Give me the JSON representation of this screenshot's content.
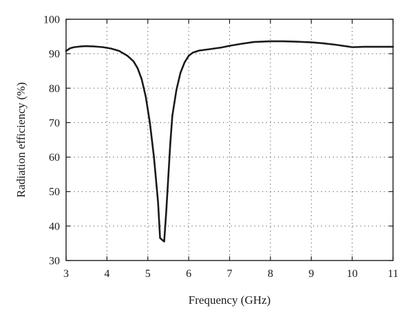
{
  "chart_data": {
    "type": "line",
    "title": "",
    "xlabel": "Frequency (GHz)",
    "ylabel": "Radiation efficiency (%)",
    "xlim": [
      3,
      11
    ],
    "ylim": [
      30,
      100
    ],
    "xticks": [
      3,
      4,
      5,
      6,
      7,
      8,
      9,
      10,
      11
    ],
    "yticks": [
      30,
      40,
      50,
      60,
      70,
      80,
      90,
      100
    ],
    "grid": true,
    "grid_style": "dotted",
    "legend": "none",
    "series": [
      {
        "color": "#1a1a1a",
        "x": [
          3.0,
          3.1,
          3.2,
          3.35,
          3.5,
          3.7,
          3.9,
          4.1,
          4.3,
          4.5,
          4.65,
          4.75,
          4.85,
          4.95,
          5.05,
          5.15,
          5.25,
          5.3,
          5.35,
          5.4,
          5.45,
          5.5,
          5.55,
          5.6,
          5.7,
          5.8,
          5.9,
          6.0,
          6.1,
          6.25,
          6.5,
          6.8,
          7.0,
          7.3,
          7.6,
          8.0,
          8.3,
          8.6,
          9.0,
          9.3,
          9.6,
          10.0,
          10.3,
          10.6,
          11.0
        ],
        "y": [
          90.8,
          91.6,
          91.9,
          92.1,
          92.2,
          92.1,
          91.9,
          91.5,
          90.8,
          89.4,
          87.8,
          85.8,
          82.6,
          77.5,
          70.0,
          60.0,
          47.0,
          36.5,
          36.0,
          35.5,
          44.0,
          54.0,
          64.0,
          72.0,
          79.5,
          84.5,
          87.5,
          89.4,
          90.3,
          90.9,
          91.3,
          91.8,
          92.3,
          92.9,
          93.4,
          93.6,
          93.6,
          93.5,
          93.3,
          93.0,
          92.6,
          91.9,
          92.0,
          92.0,
          92.0
        ]
      }
    ]
  }
}
